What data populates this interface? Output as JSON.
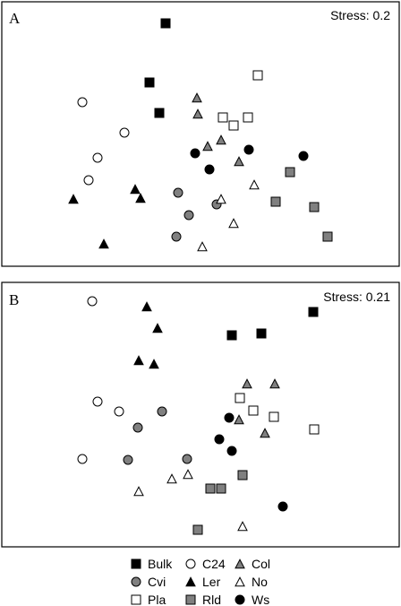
{
  "chart_data": [
    {
      "type": "scatter",
      "panel": "A",
      "stress": "Stress: 0.2",
      "xlim": [
        0,
        444
      ],
      "ylim": [
        0,
        295
      ],
      "series": [
        {
          "name": "Bulk",
          "points": [
            [
              183,
              271
            ],
            [
              165,
              205
            ],
            [
              176,
              171
            ]
          ]
        },
        {
          "name": "C24",
          "points": [
            [
              90,
              183
            ],
            [
              137,
              149
            ],
            [
              107,
              121
            ],
            [
              97,
              96
            ]
          ]
        },
        {
          "name": "Col",
          "points": [
            [
              218,
              188
            ],
            [
              219,
              170
            ],
            [
              245,
              141
            ],
            [
              230,
              134
            ],
            [
              265,
              117
            ]
          ]
        },
        {
          "name": "Cvi",
          "points": [
            [
              197,
              82
            ],
            [
              240,
              69
            ],
            [
              209,
              57
            ],
            [
              195,
              33
            ]
          ]
        },
        {
          "name": "Ler",
          "points": [
            [
              80,
              75
            ],
            [
              149,
              86
            ],
            [
              155,
              76
            ],
            [
              114,
              25
            ]
          ]
        },
        {
          "name": "No",
          "points": [
            [
              282,
              91
            ],
            [
              245,
              75
            ],
            [
              259,
              48
            ],
            [
              224,
              22
            ]
          ]
        },
        {
          "name": "Pla",
          "points": [
            [
              286,
              213
            ],
            [
              247,
              166
            ],
            [
              275,
              166
            ],
            [
              259,
              157
            ]
          ]
        },
        {
          "name": "Rld",
          "points": [
            [
              322,
              105
            ],
            [
              306,
              72
            ],
            [
              349,
              66
            ],
            [
              364,
              33
            ]
          ]
        },
        {
          "name": "Ws",
          "points": [
            [
              216,
              126
            ],
            [
              276,
              130
            ],
            [
              337,
              123
            ],
            [
              232,
              108
            ]
          ]
        }
      ]
    },
    {
      "type": "scatter",
      "panel": "B",
      "stress": "Stress: 0.21",
      "xlim": [
        0,
        444
      ],
      "ylim": [
        0,
        295
      ],
      "series": [
        {
          "name": "Bulk",
          "points": [
            [
              348,
              262
            ],
            [
              290,
              238
            ],
            [
              257,
              236
            ]
          ]
        },
        {
          "name": "C24",
          "points": [
            [
              101,
              274
            ],
            [
              107,
              162
            ],
            [
              131,
              151
            ],
            [
              90,
              98
            ]
          ]
        },
        {
          "name": "Col",
          "points": [
            [
              274,
              182
            ],
            [
              305,
              182
            ],
            [
              265,
              142
            ],
            [
              294,
              127
            ]
          ]
        },
        {
          "name": "Cvi",
          "points": [
            [
              179,
              151
            ],
            [
              152,
              133
            ],
            [
              141,
              97
            ],
            [
              207,
              98
            ]
          ]
        },
        {
          "name": "Ler",
          "points": [
            [
              162,
              268
            ],
            [
              174,
              244
            ],
            [
              153,
              208
            ],
            [
              170,
              204
            ]
          ]
        },
        {
          "name": "No",
          "points": [
            [
              208,
              81
            ],
            [
              190,
              76
            ],
            [
              153,
              62
            ],
            [
              269,
              23
            ]
          ]
        },
        {
          "name": "Pla",
          "points": [
            [
              266,
              166
            ],
            [
              281,
              152
            ],
            [
              304,
              145
            ],
            [
              349,
              131
            ]
          ]
        },
        {
          "name": "Rld",
          "points": [
            [
              269,
              80
            ],
            [
              233,
              65
            ],
            [
              245,
              65
            ],
            [
              219,
              19
            ]
          ]
        },
        {
          "name": "Ws",
          "points": [
            [
              254,
              144
            ],
            [
              243,
              120
            ],
            [
              257,
              107
            ],
            [
              314,
              45
            ]
          ]
        }
      ]
    }
  ],
  "legend": {
    "entries": [
      {
        "name": "Bulk",
        "shape": "square",
        "fill": "#000000"
      },
      {
        "name": "C24",
        "shape": "circle",
        "fill": "#ffffff"
      },
      {
        "name": "Col",
        "shape": "triangle",
        "fill": "#808080"
      },
      {
        "name": "Cvi",
        "shape": "circle",
        "fill": "#808080"
      },
      {
        "name": "Ler",
        "shape": "triangle",
        "fill": "#000000"
      },
      {
        "name": "No",
        "shape": "triangle",
        "fill": "#ffffff"
      },
      {
        "name": "Pla",
        "shape": "square",
        "fill": "#ffffff"
      },
      {
        "name": "Rld",
        "shape": "square",
        "fill": "#808080"
      },
      {
        "name": "Ws",
        "shape": "circle",
        "fill": "#000000"
      }
    ]
  }
}
